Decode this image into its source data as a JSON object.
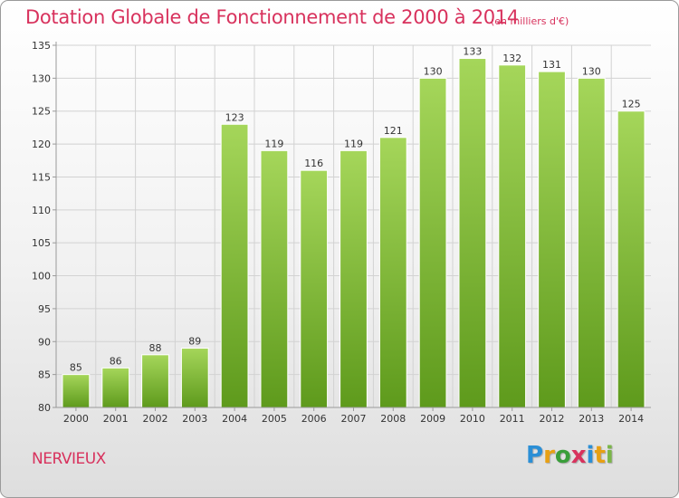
{
  "header": {
    "title": "Dotation Globale de Fonctionnement de 2000 à 2014",
    "subtitle": "(en milliers d'€)"
  },
  "footer": {
    "commune": "NERVIEUX",
    "logo_text": "Proxiti",
    "logo_colors": [
      "#2b8fd6",
      "#e8a013",
      "#3a9e3a",
      "#d8325d",
      "#2b8fd6",
      "#e8a013",
      "#7ab648"
    ]
  },
  "colors": {
    "title": "#d8325d",
    "bar_top": "#a5d65a",
    "bar_bottom": "#5e9a1c",
    "grid": "#d2d2d2",
    "axis": "#9a9a9a",
    "text": "#333333"
  },
  "chart_data": {
    "type": "bar",
    "title": "Dotation Globale de Fonctionnement de 2000 à 2014",
    "subtitle": "(en milliers d'€)",
    "xlabel": "",
    "ylabel": "",
    "categories": [
      "2000",
      "2001",
      "2002",
      "2003",
      "2004",
      "2005",
      "2006",
      "2007",
      "2008",
      "2009",
      "2010",
      "2011",
      "2012",
      "2013",
      "2014"
    ],
    "values": [
      85,
      86,
      88,
      89,
      123,
      119,
      116,
      119,
      121,
      130,
      133,
      132,
      131,
      130,
      125
    ],
    "ylim": [
      80,
      135
    ],
    "yticks": [
      80,
      85,
      90,
      95,
      100,
      105,
      110,
      115,
      120,
      125,
      130,
      135
    ],
    "grid": true,
    "data_labels": true
  }
}
